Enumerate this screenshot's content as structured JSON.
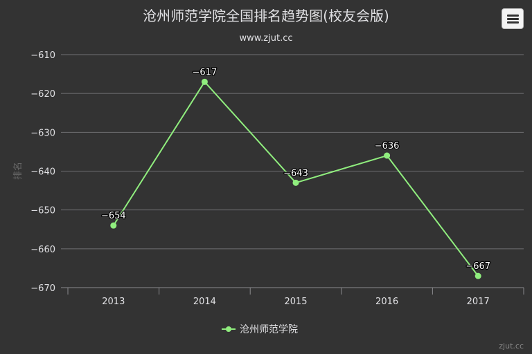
{
  "chart_data": {
    "type": "line",
    "title": "沧州师范学院全国排名趋势图(校友会版)",
    "subtitle": "www.zjut.cc",
    "xlabel": "",
    "ylabel": "排名",
    "categories": [
      "2013",
      "2014",
      "2015",
      "2016",
      "2017"
    ],
    "y_ticks": [
      -610,
      -620,
      -630,
      -640,
      -650,
      -660,
      -670
    ],
    "ylim": [
      -670,
      -610
    ],
    "grid": true,
    "legend_position": "bottom-center",
    "series": [
      {
        "name": "沧州师范学院",
        "values": [
          -654,
          -617,
          -643,
          -636,
          -667
        ],
        "color": "#90ee7e"
      }
    ]
  },
  "watermark": "zjut.cc",
  "menu_icon": "hamburger-menu-icon",
  "colors": {
    "background": "#333333",
    "title": "#e0e0e3",
    "grid": "#707073",
    "axis_text": "#e0e0e3",
    "series": "#90ee7e"
  }
}
